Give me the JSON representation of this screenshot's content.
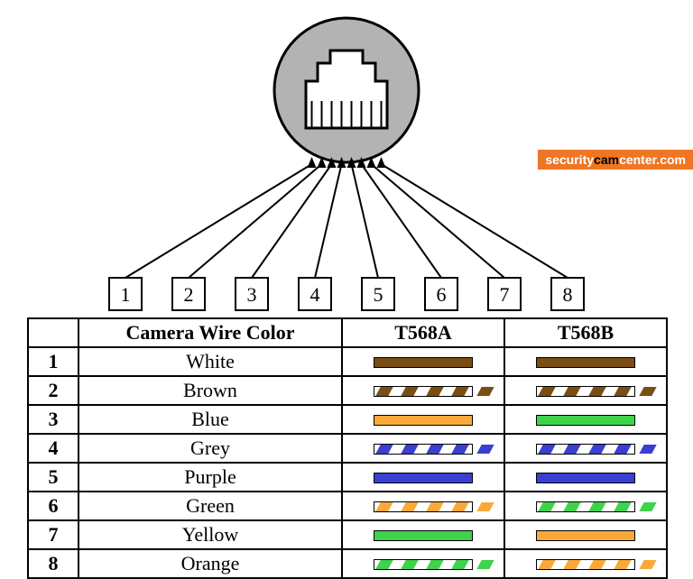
{
  "diagram": {
    "type": "connector-pinout",
    "connector": {
      "circle_fill": "#b3b3b3",
      "circle_stroke": "#000000",
      "body_fill": "#ffffff",
      "body_stroke": "#000000",
      "pin_count": 8,
      "pin_boxes": [
        "1",
        "2",
        "3",
        "4",
        "5",
        "6",
        "7",
        "8"
      ]
    },
    "box_border": "#000000",
    "box_font_size": 22
  },
  "watermark": {
    "bg": "#ee7625",
    "text_security": "security",
    "text_cam": "cam",
    "text_center": "center.com"
  },
  "table": {
    "headers": {
      "num": "",
      "color": "Camera Wire Color",
      "a": "T568A",
      "b": "T568B"
    },
    "header_font_size": 22,
    "cell_font_size": 22,
    "border_color": "#000000",
    "swatch_width": 110,
    "swatch_height": 12,
    "colors": {
      "brown": "#7a4e13",
      "orange": "#f9a93a",
      "green": "#3fd24d",
      "blue": "#3a3fd1",
      "white": "#ffffff"
    },
    "rows": [
      {
        "n": "1",
        "name": "White",
        "a": {
          "style": "solid",
          "color": "brown"
        },
        "b": {
          "style": "solid",
          "color": "brown"
        }
      },
      {
        "n": "2",
        "name": "Brown",
        "a": {
          "style": "striped",
          "color": "brown"
        },
        "b": {
          "style": "striped",
          "color": "brown"
        }
      },
      {
        "n": "3",
        "name": "Blue",
        "a": {
          "style": "solid",
          "color": "orange"
        },
        "b": {
          "style": "solid",
          "color": "green"
        }
      },
      {
        "n": "4",
        "name": "Grey",
        "a": {
          "style": "striped",
          "color": "blue"
        },
        "b": {
          "style": "striped",
          "color": "blue"
        }
      },
      {
        "n": "5",
        "name": "Purple",
        "a": {
          "style": "solid",
          "color": "blue"
        },
        "b": {
          "style": "solid",
          "color": "blue"
        }
      },
      {
        "n": "6",
        "name": "Green",
        "a": {
          "style": "striped",
          "color": "orange"
        },
        "b": {
          "style": "striped",
          "color": "green"
        }
      },
      {
        "n": "7",
        "name": "Yellow",
        "a": {
          "style": "solid",
          "color": "green"
        },
        "b": {
          "style": "solid",
          "color": "orange"
        }
      },
      {
        "n": "8",
        "name": "Orange",
        "a": {
          "style": "striped",
          "color": "green"
        },
        "b": {
          "style": "striped",
          "color": "orange"
        }
      }
    ]
  }
}
